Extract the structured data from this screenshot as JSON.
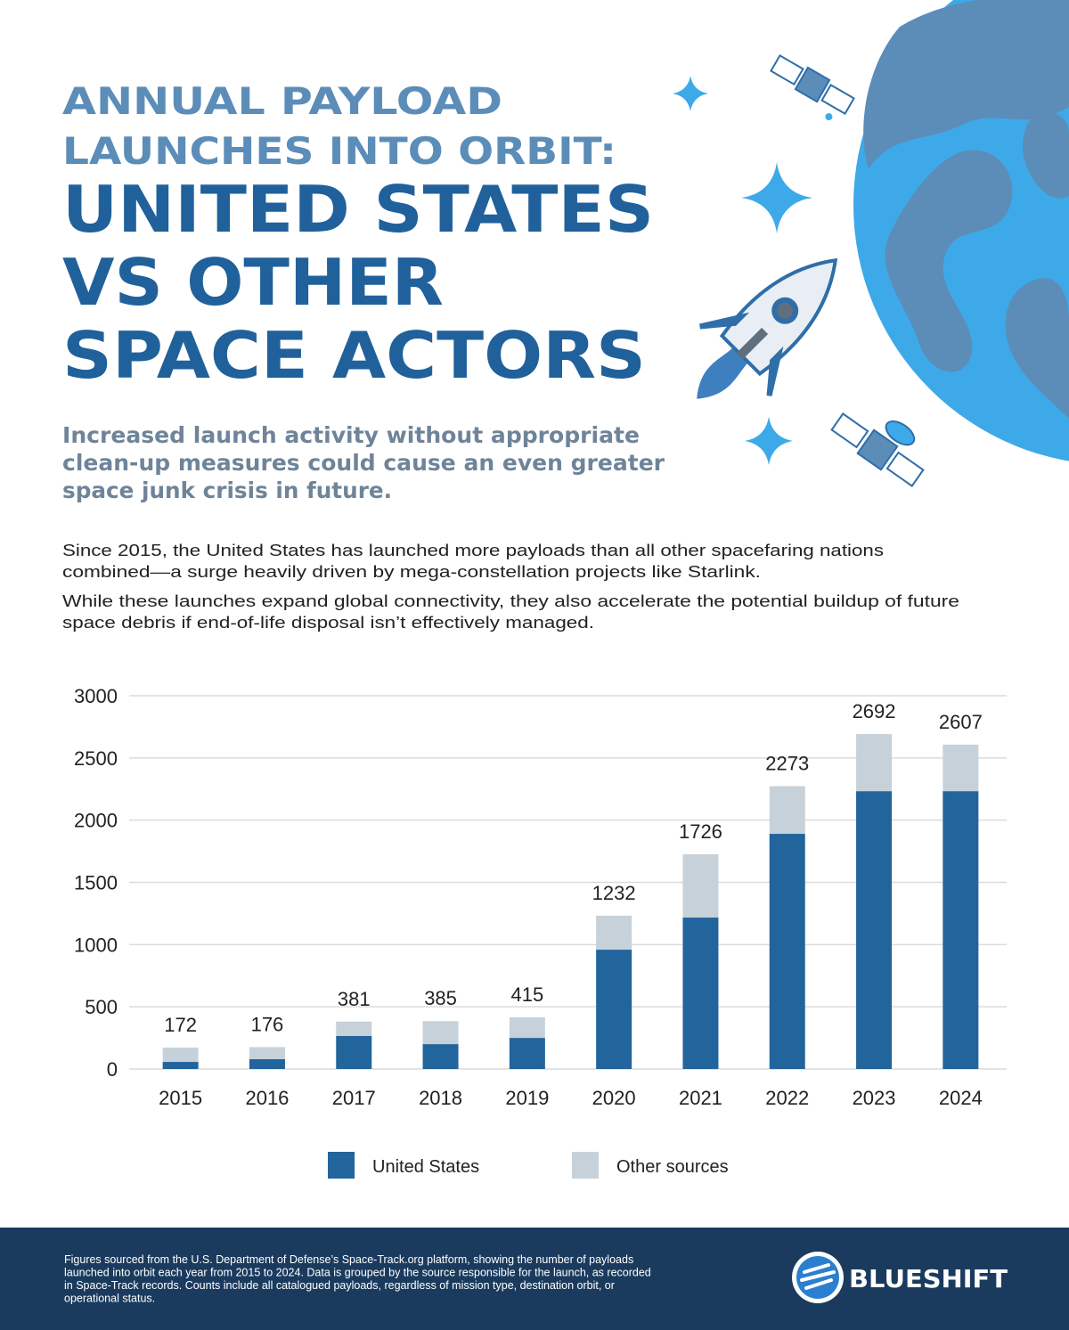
{
  "header": {
    "kicker_lines": [
      "ANNUAL PAYLOAD",
      "LAUNCHES INTO ORBIT:"
    ],
    "title_lines": [
      "UNITED STATES",
      "VS OTHER",
      "SPACE ACTORS"
    ],
    "subtitle_lines": [
      "Increased launch activity without appropriate",
      "clean-up measures could cause an even greater",
      "space junk crisis in future."
    ]
  },
  "body": {
    "paragraphs": [
      [
        "Since 2015, the United States has launched more payloads than all other spacefaring nations",
        "combined—a surge heavily driven by mega-constellation projects like Starlink."
      ],
      [
        "While these launches expand global connectivity, they also accelerate the potential buildup of future",
        "space debris if end-of-life disposal isn’t effectively managed."
      ]
    ]
  },
  "chart_data": {
    "type": "stacked_bar",
    "categories": [
      "2015",
      "2016",
      "2017",
      "2018",
      "2019",
      "2020",
      "2021",
      "2022",
      "2023",
      "2024"
    ],
    "series": [
      {
        "name": "United States",
        "color": "#22649c",
        "values": [
          57,
          79,
          265,
          200,
          250,
          959,
          1217,
          1890,
          2233,
          2233
        ]
      },
      {
        "name": "Other sources",
        "color": "#c7d1d9",
        "values": [
          115,
          97,
          116,
          185,
          165,
          273,
          509,
          383,
          459,
          374
        ]
      }
    ],
    "totals": [
      172,
      176,
      381,
      385,
      415,
      1232,
      1726,
      2273,
      2692,
      2607
    ],
    "ylim": [
      0,
      3000
    ],
    "yticks": [
      0,
      500,
      1000,
      1500,
      2000,
      2500,
      3000
    ],
    "grid": true,
    "legend": "bottom"
  },
  "footer": {
    "note_lines": [
      "Figures sourced from the U.S. Department of Defense’s Space-Track.org platform, showing the number of payloads",
      "launched into orbit each year from 2015 to 2024. Data is grouped by the source responsible for the launch, as recorded",
      "in Space-Track records. Counts include all catalogued payloads, regardless of mission type, destination orbit, or",
      "operational status."
    ],
    "brand": "BLUESHIFT"
  }
}
